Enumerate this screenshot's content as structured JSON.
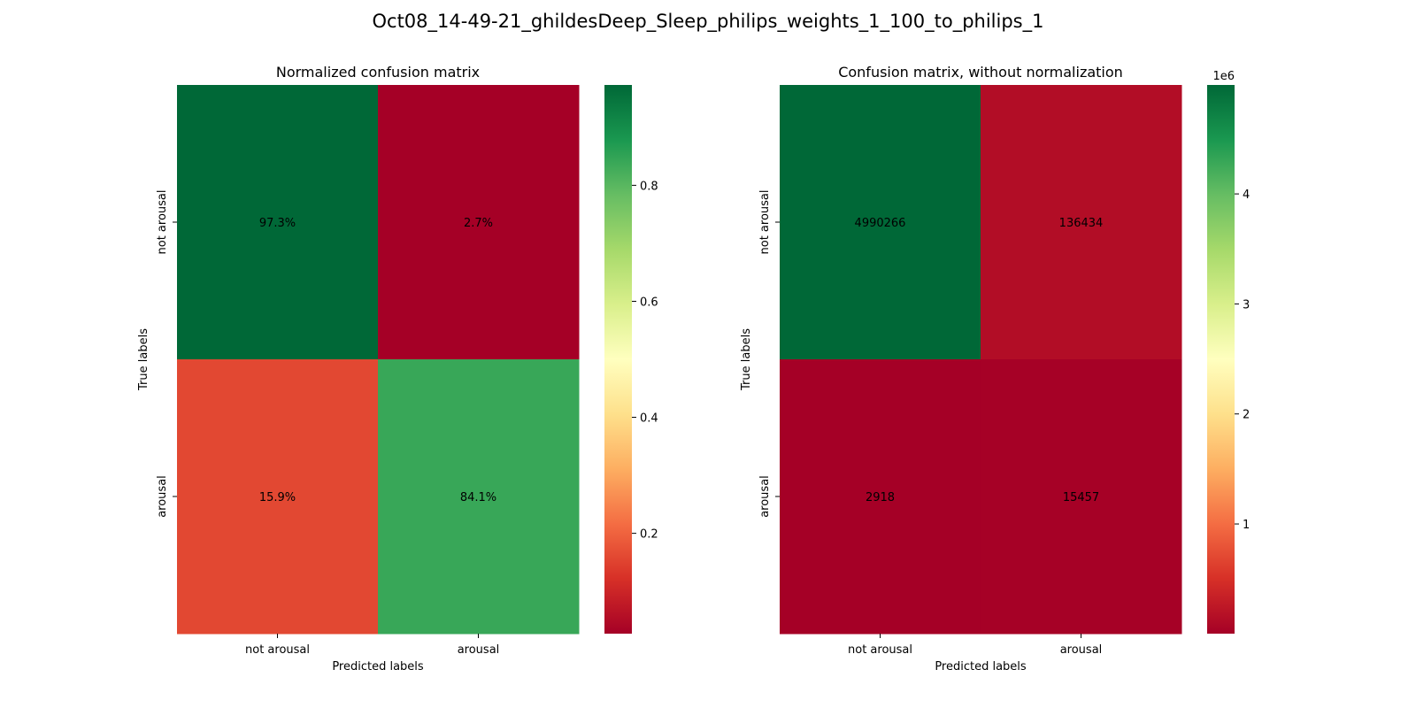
{
  "figure": {
    "suptitle": "Oct08_14-49-21_ghildesDeep_Sleep_philips_weights_1_100_to_philips_1"
  },
  "chart_data": [
    {
      "type": "heatmap",
      "title": "Normalized confusion matrix",
      "xlabel": "Predicted labels",
      "ylabel": "True labels",
      "x_categories": [
        "not arousal",
        "arousal"
      ],
      "y_categories": [
        "not arousal",
        "arousal"
      ],
      "values": [
        [
          0.973,
          0.027
        ],
        [
          0.159,
          0.841
        ]
      ],
      "annotations": [
        [
          "97.3%",
          "2.7%"
        ],
        [
          "15.9%",
          "84.1%"
        ]
      ],
      "colormap": "RdYlGn",
      "vmin": 0.027,
      "vmax": 0.973,
      "colorbar_ticks": [
        0.2,
        0.4,
        0.6,
        0.8
      ],
      "colorbar_tick_labels": [
        "0.2",
        "0.4",
        "0.6",
        "0.8"
      ],
      "colorbar_offset_text": "",
      "annotation_color": "#ffffff"
    },
    {
      "type": "heatmap",
      "title": "Confusion matrix, without normalization",
      "xlabel": "Predicted labels",
      "ylabel": "True labels",
      "x_categories": [
        "not arousal",
        "arousal"
      ],
      "y_categories": [
        "not arousal",
        "arousal"
      ],
      "values": [
        [
          4990266,
          136434
        ],
        [
          2918,
          15457
        ]
      ],
      "annotations": [
        [
          "4990266",
          "136434"
        ],
        [
          "2918",
          "15457"
        ]
      ],
      "colormap": "RdYlGn",
      "vmin": 2918,
      "vmax": 4990266,
      "colorbar_ticks": [
        1000000,
        2000000,
        3000000,
        4000000
      ],
      "colorbar_tick_labels": [
        "1",
        "2",
        "3",
        "4"
      ],
      "colorbar_offset_text": "1e6",
      "annotation_color": "#ffffff"
    }
  ]
}
